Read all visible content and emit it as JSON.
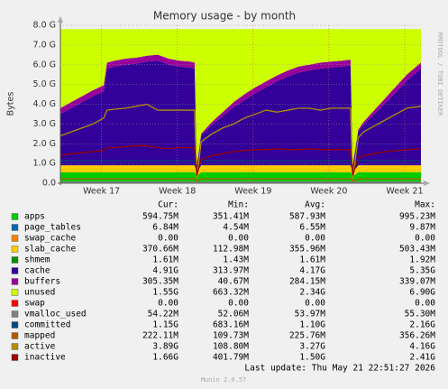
{
  "chart_data": {
    "type": "area",
    "title": "Memory usage - by month",
    "ylabel": "Bytes",
    "side_note": "RRDTOOL / TOBI OETIKER",
    "last_update": "Last update: Thu May 21 22:51:27 2026",
    "footer": "Munin 2.0.57",
    "grid": true,
    "legend_columns": [
      "Cur:",
      "Min:",
      "Avg:",
      "Max:"
    ],
    "xlim": [
      0,
      33.3
    ],
    "xticks": [
      {
        "value": 3.8,
        "label": "Week 17"
      },
      {
        "value": 10.8,
        "label": "Week 18"
      },
      {
        "value": 17.8,
        "label": "Week 19"
      },
      {
        "value": 24.8,
        "label": "Week 20"
      },
      {
        "value": 31.8,
        "label": "Week 21"
      }
    ],
    "ylim": [
      0,
      8000000000.0
    ],
    "yticks": [
      {
        "value": 0,
        "label": "0.0"
      },
      {
        "value": 1000000000.0,
        "label": "1.0 G"
      },
      {
        "value": 2000000000.0,
        "label": "2.0 G"
      },
      {
        "value": 3000000000.0,
        "label": "3.0 G"
      },
      {
        "value": 4000000000.0,
        "label": "4.0 G"
      },
      {
        "value": 5000000000.0,
        "label": "5.0 G"
      },
      {
        "value": 6000000000.0,
        "label": "6.0 G"
      },
      {
        "value": 7000000000.0,
        "label": "7.0 G"
      },
      {
        "value": 8000000000.0,
        "label": "8.0 G"
      }
    ],
    "x": [
      0,
      1,
      2,
      3,
      4,
      4.3,
      5,
      6,
      7,
      8,
      9,
      10,
      11,
      12,
      12.4,
      12.6,
      13,
      14,
      15,
      16,
      17,
      18,
      19,
      20,
      21,
      22,
      23,
      24,
      25,
      26,
      26.8,
      27,
      27.5,
      28,
      29,
      30,
      31,
      32,
      33.3
    ],
    "series": [
      {
        "name": "apps",
        "color": "#00cc00",
        "stack": true,
        "stats": [
          "594.75M",
          "351.41M",
          "587.93M",
          "995.23M"
        ],
        "values": [
          550000000.0,
          550000000.0,
          550000000.0,
          550000000.0,
          550000000.0,
          550000000.0,
          550000000.0,
          550000000.0,
          550000000.0,
          550000000.0,
          550000000.0,
          550000000.0,
          550000000.0,
          550000000.0,
          550000000.0,
          350000000.0,
          550000000.0,
          550000000.0,
          550000000.0,
          550000000.0,
          550000000.0,
          550000000.0,
          550000000.0,
          550000000.0,
          550000000.0,
          550000000.0,
          550000000.0,
          550000000.0,
          550000000.0,
          550000000.0,
          550000000.0,
          350000000.0,
          550000000.0,
          550000000.0,
          550000000.0,
          550000000.0,
          550000000.0,
          550000000.0,
          550000000.0
        ]
      },
      {
        "name": "page_tables",
        "color": "#0066b3",
        "stack": true,
        "stats": [
          "6.84M",
          "4.54M",
          "6.55M",
          "9.87M"
        ],
        "values": [
          6800000.0,
          6800000.0,
          6800000.0,
          6800000.0,
          6800000.0,
          6800000.0,
          6800000.0,
          6800000.0,
          6800000.0,
          6800000.0,
          6800000.0,
          6800000.0,
          6800000.0,
          6800000.0,
          6800000.0,
          4600000.0,
          6800000.0,
          6800000.0,
          6800000.0,
          6800000.0,
          6800000.0,
          6800000.0,
          6800000.0,
          6800000.0,
          6800000.0,
          6800000.0,
          6800000.0,
          6800000.0,
          6800000.0,
          6800000.0,
          6800000.0,
          4600000.0,
          6800000.0,
          6800000.0,
          6800000.0,
          6800000.0,
          6800000.0,
          6800000.0,
          6800000.0
        ]
      },
      {
        "name": "swap_cache",
        "color": "#ff8000",
        "stack": true,
        "stats": [
          "0.00",
          "0.00",
          "0.00",
          "0.00"
        ],
        "values": [
          0,
          0,
          0,
          0,
          0,
          0,
          0,
          0,
          0,
          0,
          0,
          0,
          0,
          0,
          0,
          0,
          0,
          0,
          0,
          0,
          0,
          0,
          0,
          0,
          0,
          0,
          0,
          0,
          0,
          0,
          0,
          0,
          0,
          0,
          0,
          0,
          0,
          0,
          0
        ]
      },
      {
        "name": "slab_cache",
        "color": "#ffcc00",
        "stack": true,
        "stats": [
          "370.66M",
          "112.98M",
          "355.96M",
          "503.43M"
        ],
        "values": [
          350000000.0,
          350000000.0,
          350000000.0,
          350000000.0,
          350000000.0,
          350000000.0,
          350000000.0,
          350000000.0,
          350000000.0,
          350000000.0,
          350000000.0,
          350000000.0,
          350000000.0,
          350000000.0,
          350000000.0,
          200000000.0,
          350000000.0,
          350000000.0,
          350000000.0,
          350000000.0,
          350000000.0,
          350000000.0,
          350000000.0,
          350000000.0,
          350000000.0,
          350000000.0,
          350000000.0,
          350000000.0,
          350000000.0,
          350000000.0,
          350000000.0,
          200000000.0,
          350000000.0,
          350000000.0,
          350000000.0,
          350000000.0,
          350000000.0,
          350000000.0,
          350000000.0
        ]
      },
      {
        "name": "shmem",
        "color": "#008f00",
        "stack": true,
        "stats": [
          "1.61M",
          "1.43M",
          "1.61M",
          "1.92M"
        ],
        "values": [
          1600000.0,
          1600000.0,
          1600000.0,
          1600000.0,
          1600000.0,
          1600000.0,
          1600000.0,
          1600000.0,
          1600000.0,
          1600000.0,
          1600000.0,
          1600000.0,
          1600000.0,
          1600000.0,
          1600000.0,
          1400000.0,
          1600000.0,
          1600000.0,
          1600000.0,
          1600000.0,
          1600000.0,
          1600000.0,
          1600000.0,
          1600000.0,
          1600000.0,
          1600000.0,
          1600000.0,
          1600000.0,
          1600000.0,
          1600000.0,
          1600000.0,
          1400000.0,
          1600000.0,
          1600000.0,
          1600000.0,
          1600000.0,
          1600000.0,
          1600000.0,
          1600000.0
        ]
      },
      {
        "name": "cache",
        "color": "#330099",
        "stack": true,
        "stats": [
          "4.91G",
          "313.97M",
          "4.17G",
          "5.35G"
        ],
        "values": [
          2600000000.0,
          2900000000.0,
          3200000000.0,
          3500000000.0,
          3750000000.0,
          4900000000.0,
          5000000000.0,
          5100000000.0,
          5150000000.0,
          5250000000.0,
          5300000000.0,
          5100000000.0,
          5000000000.0,
          4950000000.0,
          4900000000.0,
          310000000.0,
          1500000000.0,
          2050000000.0,
          2500000000.0,
          2950000000.0,
          3300000000.0,
          3650000000.0,
          3950000000.0,
          4250000000.0,
          4500000000.0,
          4700000000.0,
          4800000000.0,
          4900000000.0,
          4950000000.0,
          5000000000.0,
          5050000000.0,
          310000000.0,
          1700000000.0,
          2050000000.0,
          2600000000.0,
          3150000000.0,
          3700000000.0,
          4300000000.0,
          4900000000.0
        ]
      },
      {
        "name": "buffers",
        "color": "#990099",
        "stack": true,
        "stats": [
          "305.35M",
          "40.67M",
          "284.15M",
          "339.07M"
        ],
        "values": [
          300000000.0,
          300000000.0,
          300000000.0,
          300000000.0,
          300000000.0,
          300000000.0,
          300000000.0,
          300000000.0,
          300000000.0,
          300000000.0,
          300000000.0,
          300000000.0,
          300000000.0,
          300000000.0,
          300000000.0,
          40000000.0,
          100000000.0,
          150000000.0,
          200000000.0,
          250000000.0,
          300000000.0,
          300000000.0,
          300000000.0,
          300000000.0,
          300000000.0,
          300000000.0,
          300000000.0,
          300000000.0,
          300000000.0,
          300000000.0,
          300000000.0,
          40000000.0,
          100000000.0,
          150000000.0,
          200000000.0,
          250000000.0,
          300000000.0,
          300000000.0,
          300000000.0
        ]
      },
      {
        "name": "unused",
        "color": "#ccff00",
        "stack": true,
        "stats": [
          "1.55G",
          "663.32M",
          "2.34G",
          "6.90G"
        ],
        "values": [
          4000000000.0,
          3700000000.0,
          3400000000.0,
          3100000000.0,
          2850000000.0,
          1700000000.0,
          1600000000.0,
          1500000000.0,
          1450000000.0,
          1350000000.0,
          1300000000.0,
          1500000000.0,
          1600000000.0,
          1650000000.0,
          1700000000.0,
          6900000000.0,
          5300000000.0,
          4700000000.0,
          4200000000.0,
          3700000000.0,
          3300000000.0,
          2950000000.0,
          2650000000.0,
          2350000000.0,
          2100000000.0,
          1900000000.0,
          1800000000.0,
          1700000000.0,
          1650000000.0,
          1600000000.0,
          1550000000.0,
          6900000000.0,
          5100000000.0,
          4700000000.0,
          4100000000.0,
          3500000000.0,
          2900000000.0,
          2300000000.0,
          1700000000.0
        ]
      },
      {
        "name": "swap",
        "color": "#ff0000",
        "stack": true,
        "stats": [
          "0.00",
          "0.00",
          "0.00",
          "0.00"
        ],
        "values": [
          0,
          0,
          0,
          0,
          0,
          0,
          0,
          0,
          0,
          0,
          0,
          0,
          0,
          0,
          0,
          0,
          0,
          0,
          0,
          0,
          0,
          0,
          0,
          0,
          0,
          0,
          0,
          0,
          0,
          0,
          0,
          0,
          0,
          0,
          0,
          0,
          0,
          0,
          0
        ]
      },
      {
        "name": "vmalloc_used",
        "color": "#808080",
        "stack": false,
        "stats": [
          "54.22M",
          "52.06M",
          "53.97M",
          "55.30M"
        ],
        "values": [
          54000000.0,
          54000000.0,
          54000000.0,
          54000000.0,
          54000000.0,
          54000000.0,
          54000000.0,
          54000000.0,
          54000000.0,
          54000000.0,
          54000000.0,
          54000000.0,
          54000000.0,
          54000000.0,
          54000000.0,
          52000000.0,
          54000000.0,
          54000000.0,
          54000000.0,
          54000000.0,
          54000000.0,
          54000000.0,
          54000000.0,
          54000000.0,
          54000000.0,
          54000000.0,
          54000000.0,
          54000000.0,
          54000000.0,
          54000000.0,
          54000000.0,
          52000000.0,
          54000000.0,
          54000000.0,
          54000000.0,
          54000000.0,
          54000000.0,
          54000000.0,
          54000000.0
        ]
      },
      {
        "name": "committed",
        "color": "#00487d",
        "stack": false,
        "stats": [
          "1.15G",
          "683.16M",
          "1.10G",
          "2.16G"
        ],
        "values": [
          1150000000.0,
          1150000000.0,
          1150000000.0,
          1150000000.0,
          1150000000.0,
          1150000000.0,
          1150000000.0,
          1150000000.0,
          1150000000.0,
          1150000000.0,
          1150000000.0,
          1150000000.0,
          1150000000.0,
          1150000000.0,
          1150000000.0,
          700000000.0,
          1150000000.0,
          1150000000.0,
          1150000000.0,
          1150000000.0,
          1150000000.0,
          1150000000.0,
          1150000000.0,
          1150000000.0,
          1150000000.0,
          1150000000.0,
          1150000000.0,
          1150000000.0,
          1150000000.0,
          1150000000.0,
          1150000000.0,
          700000000.0,
          1150000000.0,
          1150000000.0,
          1150000000.0,
          1150000000.0,
          1150000000.0,
          1150000000.0,
          1150000000.0
        ]
      },
      {
        "name": "mapped",
        "color": "#b35a00",
        "stack": false,
        "stats": [
          "222.11M",
          "109.73M",
          "225.76M",
          "356.26M"
        ],
        "values": [
          220000000.0,
          220000000.0,
          220000000.0,
          220000000.0,
          220000000.0,
          220000000.0,
          220000000.0,
          220000000.0,
          220000000.0,
          220000000.0,
          220000000.0,
          220000000.0,
          220000000.0,
          220000000.0,
          220000000.0,
          110000000.0,
          220000000.0,
          220000000.0,
          220000000.0,
          220000000.0,
          220000000.0,
          220000000.0,
          220000000.0,
          220000000.0,
          220000000.0,
          220000000.0,
          220000000.0,
          220000000.0,
          220000000.0,
          220000000.0,
          220000000.0,
          110000000.0,
          220000000.0,
          220000000.0,
          220000000.0,
          220000000.0,
          220000000.0,
          220000000.0,
          220000000.0
        ]
      },
      {
        "name": "active",
        "color": "#b38f00",
        "stack": false,
        "stats": [
          "3.89G",
          "108.80M",
          "3.27G",
          "4.16G"
        ],
        "values": [
          2400000000.0,
          2600000000.0,
          2800000000.0,
          3000000000.0,
          3300000000.0,
          3700000000.0,
          3750000000.0,
          3800000000.0,
          3900000000.0,
          4000000000.0,
          3700000000.0,
          3700000000.0,
          3700000000.0,
          3700000000.0,
          3700000000.0,
          200000000.0,
          2100000000.0,
          2500000000.0,
          2800000000.0,
          3000000000.0,
          3300000000.0,
          3500000000.0,
          3700000000.0,
          3600000000.0,
          3700000000.0,
          3800000000.0,
          3800000000.0,
          3700000000.0,
          3800000000.0,
          3800000000.0,
          3800000000.0,
          200000000.0,
          2300000000.0,
          2600000000.0,
          2900000000.0,
          3200000000.0,
          3500000000.0,
          3800000000.0,
          3900000000.0
        ]
      },
      {
        "name": "inactive",
        "color": "#990000",
        "stack": false,
        "stats": [
          "1.66G",
          "401.79M",
          "1.50G",
          "2.41G"
        ],
        "values": [
          1400000000.0,
          1500000000.0,
          1550000000.0,
          1600000000.0,
          1650000000.0,
          1800000000.0,
          1800000000.0,
          1850000000.0,
          1900000000.0,
          1900000000.0,
          1800000000.0,
          1750000000.0,
          1800000000.0,
          1800000000.0,
          1800000000.0,
          400000000.0,
          1200000000.0,
          1400000000.0,
          1500000000.0,
          1600000000.0,
          1650000000.0,
          1700000000.0,
          1700000000.0,
          1750000000.0,
          1700000000.0,
          1700000000.0,
          1750000000.0,
          1700000000.0,
          1700000000.0,
          1700000000.0,
          1700000000.0,
          400000000.0,
          1300000000.0,
          1400000000.0,
          1500000000.0,
          1600000000.0,
          1650000000.0,
          1700000000.0,
          1750000000.0
        ]
      }
    ]
  }
}
